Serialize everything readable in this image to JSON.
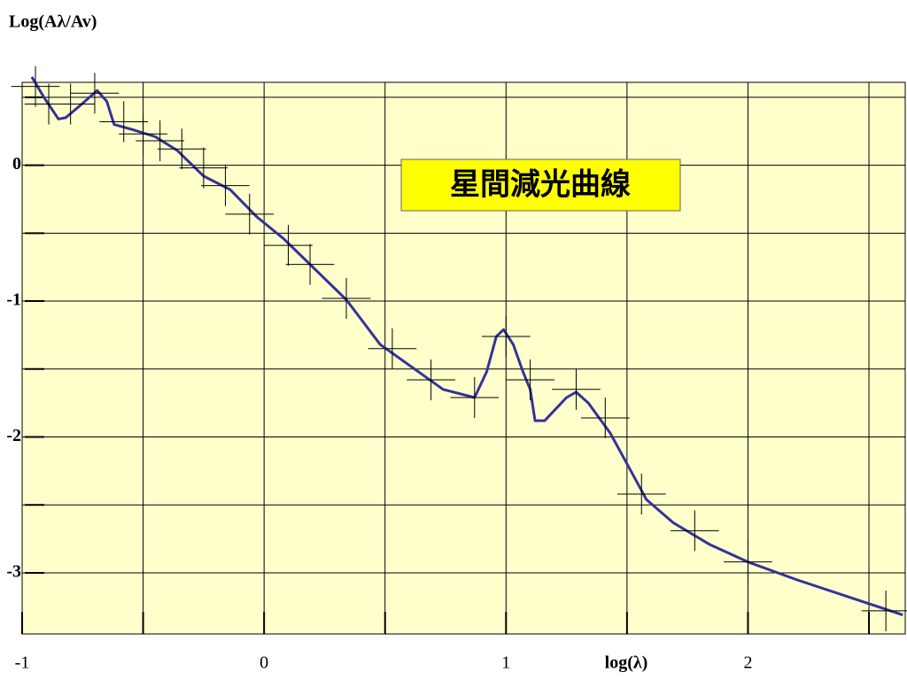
{
  "chart_data": {
    "type": "line",
    "title": "Log(Aλ/Av)",
    "x_label": "log(λ)",
    "annotation": "星間減光曲線",
    "xlim": [
      -1,
      2.65
    ],
    "ylim": [
      -3.45,
      0.61
    ],
    "xticks": [
      -1,
      0,
      1,
      2
    ],
    "x_minor_ticks": [
      -0.5,
      0.5,
      1.5,
      2.5
    ],
    "yticks": [
      -3,
      -2,
      -1,
      0
    ],
    "y_minor_ticks": [
      -2.5,
      -1.5,
      -0.5,
      0.5
    ],
    "grid": true,
    "background": "#ffffcc",
    "series": [
      {
        "name": "curve",
        "color": "#333399",
        "x": [
          -0.96,
          -0.91,
          -0.85,
          -0.82,
          -0.76,
          -0.69,
          -0.65,
          -0.62,
          -0.54,
          -0.45,
          -0.36,
          -0.25,
          -0.14,
          -0.03,
          0.08,
          0.19,
          0.34,
          0.48,
          0.63,
          0.74,
          0.87,
          0.92,
          0.96,
          0.99,
          1.03,
          1.07,
          1.1,
          1.12,
          1.16,
          1.25,
          1.29,
          1.34,
          1.43,
          1.51,
          1.58,
          1.69,
          1.84,
          2.0,
          2.2,
          2.42,
          2.64
        ],
        "values": [
          0.65,
          0.5,
          0.34,
          0.35,
          0.44,
          0.55,
          0.47,
          0.3,
          0.26,
          0.21,
          0.11,
          -0.08,
          -0.18,
          -0.38,
          -0.54,
          -0.73,
          -0.99,
          -1.32,
          -1.51,
          -1.65,
          -1.71,
          -1.52,
          -1.26,
          -1.21,
          -1.32,
          -1.52,
          -1.65,
          -1.88,
          -1.88,
          -1.71,
          -1.67,
          -1.75,
          -1.97,
          -2.23,
          -2.46,
          -2.63,
          -2.79,
          -2.92,
          -3.05,
          -3.18,
          -3.31
        ]
      },
      {
        "name": "observations",
        "color": "#000000",
        "x": [
          -0.945,
          -0.89,
          -0.8,
          -0.7,
          -0.58,
          -0.5,
          -0.43,
          -0.34,
          -0.25,
          -0.16,
          -0.06,
          0.1,
          0.19,
          0.34,
          0.53,
          0.69,
          0.87,
          1.0,
          1.1,
          1.29,
          1.41,
          1.56,
          1.78,
          2.0,
          2.57
        ],
        "values": [
          0.58,
          0.45,
          0.45,
          0.53,
          0.32,
          0.23,
          0.18,
          0.12,
          -0.02,
          -0.15,
          -0.36,
          -0.59,
          -0.73,
          -0.98,
          -1.35,
          -1.58,
          -1.71,
          -1.26,
          -1.58,
          -1.65,
          -1.86,
          -2.42,
          -2.69,
          -2.92,
          -3.28
        ],
        "xerr": 0.1,
        "yerr": 0.15
      }
    ]
  }
}
